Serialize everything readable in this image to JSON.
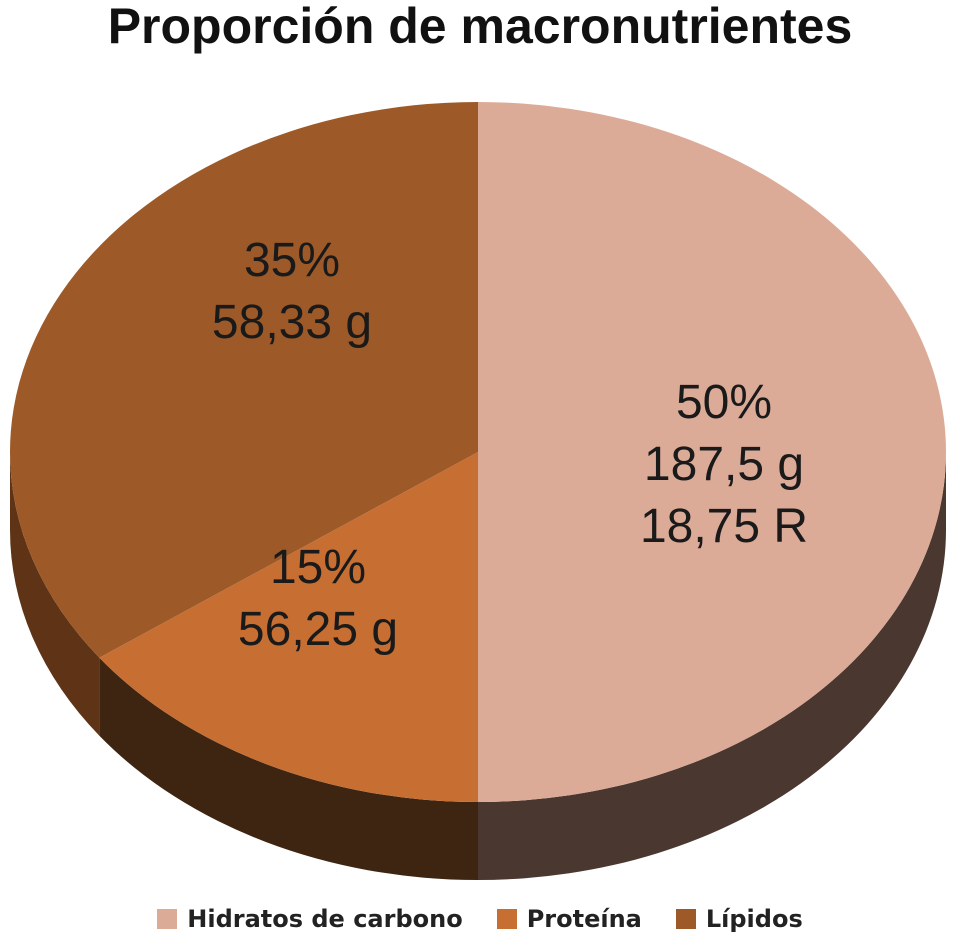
{
  "chart_data": {
    "type": "pie",
    "title": "Proporción de macronutrientes",
    "slices": [
      {
        "name": "Hidratos de carbono",
        "percent": 50,
        "color": "#dcab98",
        "side_color": "#4a3830",
        "labels": [
          "50%",
          "187,5 g",
          "18,75 R"
        ]
      },
      {
        "name": "Proteína",
        "percent": 15,
        "color": "#c76f33",
        "side_color": "#3e2512",
        "labels": [
          "15%",
          "56,25 g"
        ]
      },
      {
        "name": "Lípidos",
        "percent": 35,
        "color": "#9d5a28",
        "side_color": "#5e3316",
        "labels": [
          "35%",
          "58,33 g"
        ]
      }
    ],
    "legend_position": "bottom"
  }
}
